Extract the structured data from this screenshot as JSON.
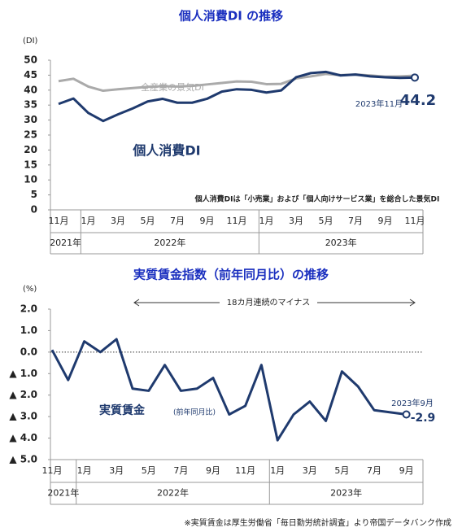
{
  "chart_data": [
    {
      "type": "line",
      "title": "個人消費DI の推移",
      "ylabel": "(DI)",
      "categories": [
        "11月",
        null,
        "1月",
        null,
        "3月",
        null,
        "5月",
        null,
        "7月",
        null,
        "9月",
        null,
        "11月",
        null,
        "1月",
        null,
        "3月",
        null,
        "5月",
        null,
        "7月",
        null,
        "9月",
        null,
        "11月"
      ],
      "year_labels": [
        "2021年",
        "2022年",
        "2023年"
      ],
      "year_spans": [
        2,
        12,
        11
      ],
      "series": [
        {
          "name": "全産業の景気DI",
          "color": "#aaaaaa",
          "values": [
            43.0,
            43.8,
            41.2,
            39.8,
            40.3,
            40.7,
            41.1,
            41.3,
            41.2,
            41.4,
            41.9,
            42.4,
            42.9,
            42.8,
            42.0,
            42.1,
            43.9,
            44.6,
            45.4,
            45.0,
            45.2,
            44.9,
            44.5,
            44.6,
            44.8
          ]
        },
        {
          "name": "個人消費DI",
          "color": "#1f3a6e",
          "values": [
            35.4,
            37.2,
            32.4,
            29.7,
            31.9,
            33.9,
            36.2,
            37.1,
            35.8,
            35.8,
            37.1,
            39.5,
            40.3,
            40.1,
            39.2,
            39.9,
            44.3,
            45.7,
            46.1,
            44.9,
            45.2,
            44.6,
            44.3,
            44.1,
            44.2
          ]
        }
      ],
      "ylim": [
        0,
        50
      ],
      "yticks": [
        0,
        5,
        10,
        15,
        20,
        25,
        30,
        35,
        40,
        45,
        50
      ],
      "end_label": "2023年11月",
      "note": "個人消費DIは「小売業」および「個人向けサービス業」を総合した景気DI"
    },
    {
      "type": "line",
      "title": "実質賃金指数（前年同月比）の推移",
      "ylabel": "(%)",
      "categories": [
        "11月",
        null,
        "1月",
        null,
        "3月",
        null,
        "5月",
        null,
        "7月",
        null,
        "9月",
        null,
        "11月",
        null,
        "1月",
        null,
        "3月",
        null,
        "5月",
        null,
        "7月",
        null,
        "9月"
      ],
      "year_labels": [
        "2021年",
        "2022年",
        "2023年"
      ],
      "year_spans": [
        2,
        12,
        9
      ],
      "series": [
        {
          "name": "実質賃金",
          "color": "#1f3a6e",
          "values": [
            0.1,
            -1.3,
            0.5,
            0.0,
            0.6,
            -1.7,
            -1.8,
            -0.6,
            -1.8,
            -1.7,
            -1.2,
            -2.9,
            -2.5,
            -0.6,
            -4.1,
            -2.9,
            -2.3,
            -3.2,
            -0.9,
            -1.6,
            -2.7,
            -2.8,
            -2.9
          ]
        }
      ],
      "series_note": "(前年同月比)",
      "ylim": [
        -5,
        2
      ],
      "yticks": [
        {
          "value": 2,
          "label": "2.0"
        },
        {
          "value": 1,
          "label": "1.0"
        },
        {
          "value": 0,
          "label": "0.0"
        },
        {
          "value": -1,
          "label": "▲ 1.0"
        },
        {
          "value": -2,
          "label": "▲ 2.0"
        },
        {
          "value": -3,
          "label": "▲ 3.0"
        },
        {
          "value": -4,
          "label": "▲ 4.0"
        },
        {
          "value": -5,
          "label": "▲ 5.0"
        }
      ],
      "zero_line": true,
      "span_annotation": "18カ月連続のマイナス",
      "end_label": "2023年9月"
    }
  ],
  "footnote": "※実質賃金は厚生労働省「毎日勤労統計調査」より帝国データバンク作成"
}
